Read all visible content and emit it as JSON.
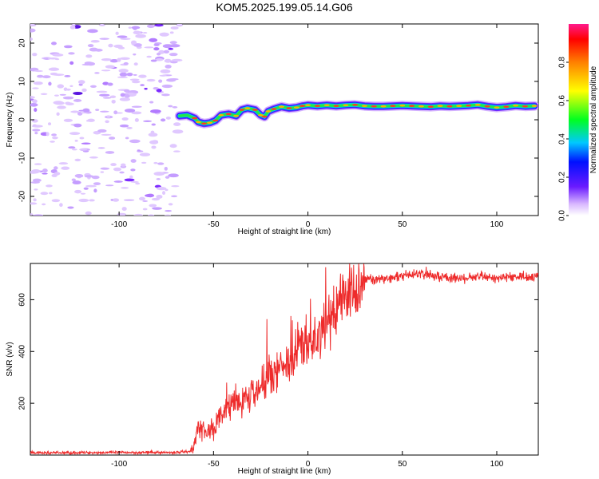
{
  "title": "KOM5.2025.199.05.14.G06",
  "chart_data": [
    {
      "type": "heatmap",
      "xlabel": "Height of straight line (km)",
      "ylabel": "Frequency (Hz)",
      "xlim": [
        -147,
        122
      ],
      "ylim": [
        -25,
        25
      ],
      "xticks": [
        -100,
        -50,
        0,
        50,
        100
      ],
      "yticks": [
        -20,
        -10,
        0,
        10,
        20
      ],
      "ridge": [
        [
          -68,
          1.0
        ],
        [
          -64,
          1.2
        ],
        [
          -60,
          0.4
        ],
        [
          -58,
          -0.6
        ],
        [
          -55,
          -1.0
        ],
        [
          -52,
          -0.8
        ],
        [
          -49,
          -0.2
        ],
        [
          -46,
          1.2
        ],
        [
          -42,
          1.5
        ],
        [
          -38,
          1.0
        ],
        [
          -35,
          2.6
        ],
        [
          -32,
          3.0
        ],
        [
          -28,
          2.6
        ],
        [
          -25,
          1.2
        ],
        [
          -23,
          0.8
        ],
        [
          -21,
          2.2
        ],
        [
          -18,
          2.8
        ],
        [
          -14,
          3.4
        ],
        [
          -10,
          3.0
        ],
        [
          -6,
          3.2
        ],
        [
          -3,
          3.6
        ],
        [
          0,
          3.8
        ],
        [
          5,
          3.6
        ],
        [
          10,
          3.8
        ],
        [
          15,
          3.6
        ],
        [
          20,
          3.8
        ],
        [
          25,
          3.9
        ],
        [
          30,
          3.6
        ],
        [
          35,
          3.5
        ],
        [
          40,
          3.5
        ],
        [
          45,
          3.6
        ],
        [
          50,
          3.7
        ],
        [
          55,
          3.6
        ],
        [
          60,
          3.5
        ],
        [
          65,
          3.4
        ],
        [
          70,
          3.6
        ],
        [
          75,
          3.5
        ],
        [
          80,
          3.6
        ],
        [
          85,
          3.7
        ],
        [
          90,
          3.9
        ],
        [
          95,
          3.5
        ],
        [
          100,
          3.2
        ],
        [
          105,
          3.4
        ],
        [
          110,
          3.7
        ],
        [
          115,
          3.5
        ],
        [
          120,
          3.6
        ]
      ],
      "colorbar": {
        "label": "Normalized spectral amplitude",
        "range": [
          0,
          1
        ],
        "ticks": [
          "0.0",
          "0.2",
          "0.4",
          "0.6",
          "0.8"
        ]
      }
    },
    {
      "type": "line",
      "xlabel": "Height of straight line (km)",
      "ylabel": "SNR (v/v)",
      "xlim": [
        -147,
        122
      ],
      "ylim": [
        0,
        740
      ],
      "xticks": [
        -100,
        -50,
        0,
        50,
        100
      ],
      "yticks": [
        200,
        400,
        600
      ],
      "color": "#ee2b2b",
      "series": [
        {
          "x": [
            -147,
            -100,
            -70,
            -62,
            -60,
            -58,
            -55,
            -50,
            -45,
            -40,
            -35,
            -30,
            -25,
            -20,
            -15,
            -10,
            -5,
            0,
            5,
            10,
            15,
            20,
            25,
            30,
            35,
            40,
            50,
            60,
            70,
            80,
            90,
            100,
            110,
            122
          ],
          "values": [
            8,
            10,
            10,
            15,
            40,
            130,
            90,
            110,
            160,
            200,
            200,
            240,
            260,
            320,
            330,
            370,
            410,
            420,
            460,
            500,
            560,
            610,
            640,
            680,
            680,
            680,
            690,
            700,
            690,
            680,
            690,
            685,
            690,
            690
          ]
        }
      ]
    }
  ]
}
